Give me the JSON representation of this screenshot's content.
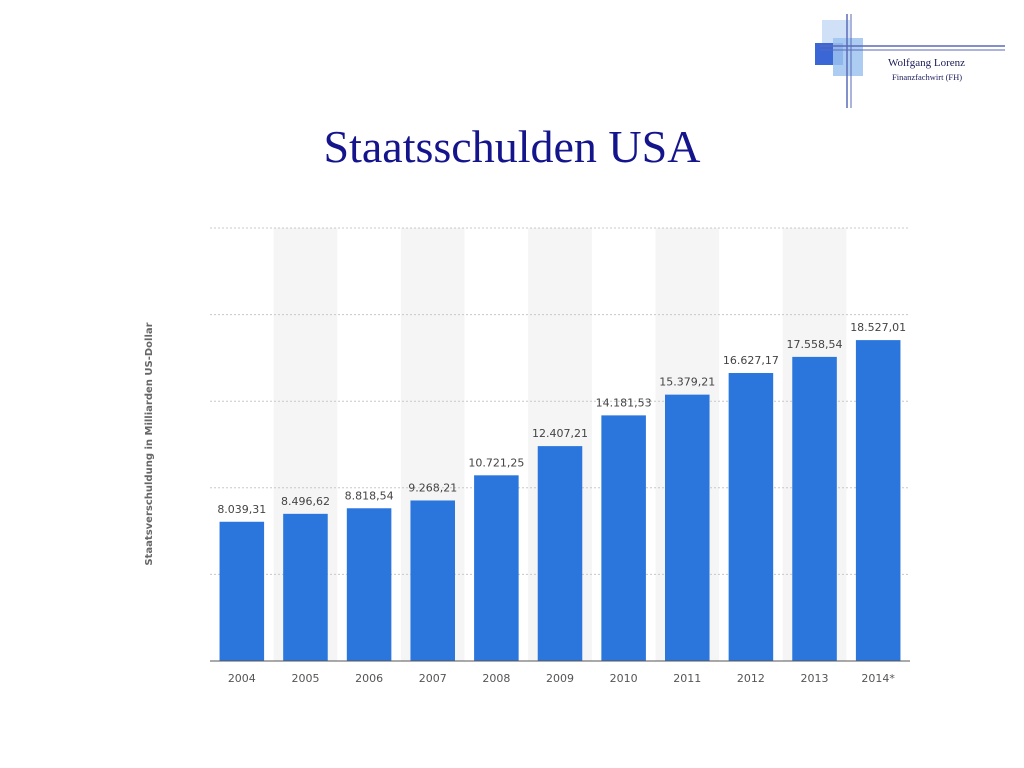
{
  "logo": {
    "name": "Wolfgang Lorenz",
    "subtitle": "Finanzfachwirt (FH)",
    "colors": {
      "blue": "#3b66d6",
      "light": "#9ec3f0",
      "line": "#5a6ab8"
    }
  },
  "title": "Staatsschulden USA",
  "chart_data": {
    "type": "bar",
    "title": "Staatsschulden USA",
    "xlabel": "",
    "ylabel": "Staatsverschuldung in Milliarden US-Dollar",
    "categories": [
      "2004",
      "2005",
      "2006",
      "2007",
      "2008",
      "2009",
      "2010",
      "2011",
      "2012",
      "2013",
      "2014*"
    ],
    "values": [
      8039.31,
      8496.62,
      8818.54,
      9268.21,
      10721.25,
      12407.21,
      14181.53,
      15379.21,
      16627.17,
      17558.54,
      18527.01
    ],
    "data_labels": [
      "8.039,31",
      "8.496,62",
      "8.818,54",
      "9.268,21",
      "10.721,25",
      "12.407,21",
      "14.181,53",
      "15.379,21",
      "16.627,17",
      "17.558,54",
      "18.527,01"
    ],
    "ylim": [
      0,
      25000
    ],
    "grid": true,
    "bar_color": "#2a76dc",
    "band_color": "#f5f5f5",
    "grid_color": "#c8c8c8"
  }
}
